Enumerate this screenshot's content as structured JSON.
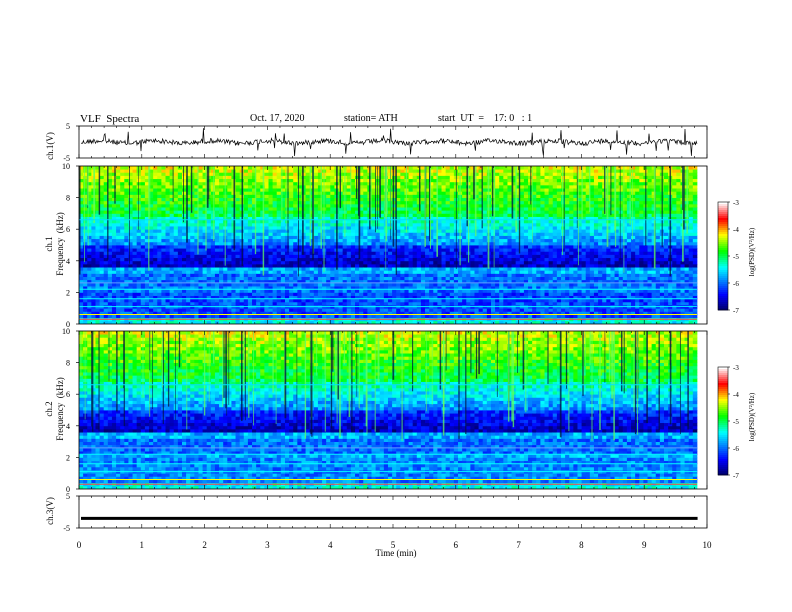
{
  "header": {
    "title": "VLF  Spectra",
    "date": "Oct. 17, 2020",
    "station": "station= ATH",
    "start": "start  UT  =    17: 0   : 1"
  },
  "chart_data": [
    {
      "type": "line",
      "name": "ch1-waveform",
      "ylabel": "ch.1(V)",
      "ylim": [
        -5,
        5
      ],
      "yticks": [
        "5",
        "-5"
      ],
      "xlim": [
        0,
        10
      ],
      "description_color": "#000000"
    },
    {
      "type": "heatmap",
      "name": "ch1-spectrogram",
      "ylabel_line1": "ch.1",
      "ylabel_line2": "Frequency  (kHz)",
      "ylim": [
        0,
        10
      ],
      "yticks": [
        "0",
        "2",
        "4",
        "6",
        "8",
        "10"
      ],
      "xlim": [
        0,
        10
      ],
      "colorbar": {
        "label": "log(PSD)(V²/Hz)",
        "range": [
          -7,
          -3
        ],
        "ticks": [
          "-3",
          "-4",
          "-5",
          "-6",
          "-7"
        ],
        "colors": [
          "#ffffff",
          "#ff0000",
          "#ffff00",
          "#00ff00",
          "#00ffff",
          "#0000ff",
          "#000060"
        ]
      }
    },
    {
      "type": "heatmap",
      "name": "ch2-spectrogram",
      "ylabel_line1": "ch.2",
      "ylabel_line2": "Frequency  (kHz)",
      "ylim": [
        0,
        10
      ],
      "yticks": [
        "0",
        "2",
        "4",
        "6",
        "8",
        "10"
      ],
      "xlim": [
        0,
        10
      ],
      "colorbar": {
        "label": "log(PSD)(V²/Hz)",
        "range": [
          -7,
          -3
        ],
        "ticks": [
          "-3",
          "-4",
          "-5",
          "-6",
          "-7"
        ],
        "colors": [
          "#ffffff",
          "#ff0000",
          "#ffff00",
          "#00ff00",
          "#00ffff",
          "#0000ff",
          "#000060"
        ]
      }
    },
    {
      "type": "line",
      "name": "ch3-waveform",
      "ylabel": "ch.3(V)",
      "ylim": [
        -5,
        5
      ],
      "yticks": [
        "5",
        "-5"
      ],
      "y_level": -2,
      "xlim": [
        0,
        10
      ],
      "xlabel": "Time  (min)",
      "xticks": [
        "0",
        "1",
        "2",
        "3",
        "4",
        "5",
        "6",
        "7",
        "8",
        "9",
        "10"
      ]
    }
  ]
}
